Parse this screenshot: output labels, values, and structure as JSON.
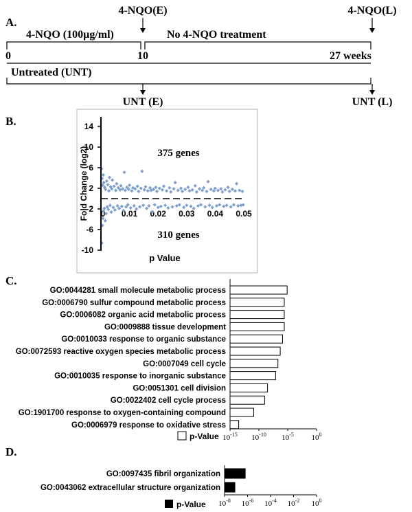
{
  "panel_a": {
    "letter": "A.",
    "top_left_label": "4-NQO(E)",
    "top_right_label": "4-NQO(L)",
    "treatment_label": "4-NQO (100µg/ml)",
    "no_treatment_label": "No 4-NQO treatment",
    "tick_0": "0",
    "tick_10": "10",
    "tick_27": "27 weeks",
    "untreated_label": "Untreated (UNT)",
    "bottom_left_label": "UNT (E)",
    "bottom_right_label": "UNT (L)"
  },
  "panel_b": {
    "letter": "B.",
    "genes_up": "375 genes",
    "genes_down": "310 genes"
  },
  "panel_c": {
    "letter": "C."
  },
  "panel_d": {
    "letter": "D."
  },
  "chart_data": [
    {
      "type": "scatter",
      "xlabel": "p Value",
      "ylabel": "Fold Change (log2)",
      "xlim": [
        0,
        0.05
      ],
      "ylim": [
        -10,
        14
      ],
      "xticks": [
        "0",
        "0.01",
        "0.02",
        "0.03",
        "0.04",
        "0.05"
      ],
      "yticks": [
        "-10",
        "-6",
        "-2",
        "2",
        "6",
        "10",
        "14"
      ],
      "series_color": "#7f9fcf",
      "points": [
        [
          0.0002,
          5.8
        ],
        [
          0.0003,
          -8.6
        ],
        [
          0.0004,
          3.9
        ],
        [
          0.0005,
          -5.2
        ],
        [
          0.0006,
          2.6
        ],
        [
          0.0007,
          -3.8
        ],
        [
          0.0008,
          4.6
        ],
        [
          0.0009,
          -2.4
        ],
        [
          0.001,
          3.1
        ],
        [
          0.0012,
          -1.9
        ],
        [
          0.0013,
          2.2
        ],
        [
          0.0015,
          -4.3
        ],
        [
          0.0016,
          1.8
        ],
        [
          0.0018,
          -2.9
        ],
        [
          0.002,
          3.4
        ],
        [
          0.0022,
          -1.6
        ],
        [
          0.0024,
          2.7
        ],
        [
          0.0026,
          -2.1
        ],
        [
          0.0028,
          1.5
        ],
        [
          0.003,
          4.1
        ],
        [
          0.0032,
          -1.3
        ],
        [
          0.0034,
          2.3
        ],
        [
          0.0036,
          -2.6
        ],
        [
          0.0038,
          1.9
        ],
        [
          0.004,
          3.6
        ],
        [
          0.0043,
          -1.7
        ],
        [
          0.0046,
          2.4
        ],
        [
          0.0049,
          -2.2
        ],
        [
          0.0052,
          1.6
        ],
        [
          0.0055,
          2.9
        ],
        [
          0.0058,
          -1.4
        ],
        [
          0.0061,
          2.1
        ],
        [
          0.0064,
          -1.9
        ],
        [
          0.0067,
          1.7
        ],
        [
          0.007,
          2.5
        ],
        [
          0.0073,
          -1.5
        ],
        [
          0.0076,
          1.9
        ],
        [
          0.0079,
          -2.3
        ],
        [
          0.0082,
          5.1
        ],
        [
          0.0085,
          1.6
        ],
        [
          0.0088,
          -1.6
        ],
        [
          0.0091,
          2.2
        ],
        [
          0.0094,
          -1.2
        ],
        [
          0.0097,
          1.8
        ],
        [
          0.01,
          2.6
        ],
        [
          0.0104,
          -1.8
        ],
        [
          0.0108,
          1.5
        ],
        [
          0.0112,
          2.1
        ],
        [
          0.0116,
          -1.4
        ],
        [
          0.012,
          1.9
        ],
        [
          0.0124,
          -2.0
        ],
        [
          0.0128,
          2.4
        ],
        [
          0.0132,
          1.4
        ],
        [
          0.0136,
          -1.6
        ],
        [
          0.014,
          2.0
        ],
        [
          0.0144,
          5.3
        ],
        [
          0.0148,
          -1.3
        ],
        [
          0.0152,
          1.7
        ],
        [
          0.0156,
          2.3
        ],
        [
          0.016,
          -1.9
        ],
        [
          0.0164,
          1.5
        ],
        [
          0.0168,
          -1.4
        ],
        [
          0.0172,
          2.1
        ],
        [
          0.0176,
          1.6
        ],
        [
          0.018,
          -2.6
        ],
        [
          0.0184,
          1.8
        ],
        [
          0.0188,
          -1.2
        ],
        [
          0.0192,
          2.2
        ],
        [
          0.0196,
          1.4
        ],
        [
          0.02,
          -1.7
        ],
        [
          0.0205,
          2.0
        ],
        [
          0.021,
          -1.5
        ],
        [
          0.0215,
          1.7
        ],
        [
          0.022,
          2.4
        ],
        [
          0.0225,
          -1.3
        ],
        [
          0.023,
          1.5
        ],
        [
          0.0235,
          -1.8
        ],
        [
          0.024,
          2.1
        ],
        [
          0.0245,
          1.3
        ],
        [
          0.025,
          -1.6
        ],
        [
          0.0255,
          1.9
        ],
        [
          0.026,
          3.1
        ],
        [
          0.0265,
          -1.4
        ],
        [
          0.027,
          1.6
        ],
        [
          0.0275,
          -1.2
        ],
        [
          0.028,
          2.0
        ],
        [
          0.0285,
          1.4
        ],
        [
          0.029,
          -1.7
        ],
        [
          0.0295,
          1.8
        ],
        [
          0.03,
          -1.3
        ],
        [
          0.0305,
          2.2
        ],
        [
          0.031,
          1.5
        ],
        [
          0.0315,
          -1.5
        ],
        [
          0.032,
          1.7
        ],
        [
          0.0325,
          -1.9
        ],
        [
          0.033,
          2.5
        ],
        [
          0.0335,
          1.3
        ],
        [
          0.034,
          -1.4
        ],
        [
          0.0345,
          1.9
        ],
        [
          0.035,
          -1.2
        ],
        [
          0.0355,
          1.6
        ],
        [
          0.036,
          2.1
        ],
        [
          0.0365,
          -1.6
        ],
        [
          0.037,
          1.4
        ],
        [
          0.0375,
          3.3
        ],
        [
          0.038,
          -1.3
        ],
        [
          0.0385,
          1.8
        ],
        [
          0.039,
          -1.7
        ],
        [
          0.0395,
          1.5
        ],
        [
          0.04,
          2.0
        ],
        [
          0.0405,
          -1.4
        ],
        [
          0.041,
          1.6
        ],
        [
          0.0415,
          -1.2
        ],
        [
          0.042,
          1.9
        ],
        [
          0.0425,
          1.3
        ],
        [
          0.043,
          -1.5
        ],
        [
          0.0435,
          1.7
        ],
        [
          0.044,
          -1.3
        ],
        [
          0.0445,
          2.2
        ],
        [
          0.045,
          1.4
        ],
        [
          0.0455,
          -1.6
        ],
        [
          0.046,
          1.8
        ],
        [
          0.0465,
          -1.2
        ],
        [
          0.047,
          1.5
        ],
        [
          0.0475,
          2.9
        ],
        [
          0.048,
          -1.4
        ],
        [
          0.0485,
          1.6
        ],
        [
          0.049,
          -1.3
        ],
        [
          0.0495,
          1.4
        ],
        [
          0.0498,
          -1.2
        ]
      ]
    },
    {
      "type": "bar",
      "orientation": "horizontal",
      "scale": "log",
      "xlabel": "p-Value",
      "xlim_exponent": [
        -15,
        0
      ],
      "ticks": [
        {
          "base": "10",
          "exp": "-15"
        },
        {
          "base": "10",
          "exp": "-10"
        },
        {
          "base": "10",
          "exp": "-5"
        },
        {
          "base": "10",
          "exp": "0"
        }
      ],
      "bar_color": "#ffffff",
      "categories": [
        "GO:0044281 small molecule metabolic process",
        "GO:0006790 sulfur compound metabolic process",
        "GO:0006082 organic acid metabolic process",
        "GO:0009888 tissue development",
        "GO:0010033 response to organic substance",
        "GO:0072593 reactive oxygen species metabolic process",
        "GO:0007049 cell cycle",
        "GO:0010035 response to inorganic substance",
        "GO:0051301 cell division",
        "GO:0022402 cell cycle process",
        "GO:1901700 response to oxygen-containing compound",
        "GO:0006979 response to oxidative stress"
      ],
      "values_exponent": [
        -5.1,
        -5.6,
        -5.6,
        -5.6,
        -5.9,
        -6.3,
        -6.7,
        -7.1,
        -8.5,
        -9.0,
        -10.9,
        -13.5
      ]
    },
    {
      "type": "bar",
      "orientation": "horizontal",
      "scale": "log",
      "xlabel": "p-Value",
      "xlim_exponent": [
        -8,
        0
      ],
      "ticks": [
        {
          "base": "10",
          "exp": "-8"
        },
        {
          "base": "10",
          "exp": "-6"
        },
        {
          "base": "10",
          "exp": "-4"
        },
        {
          "base": "10",
          "exp": "-2"
        },
        {
          "base": "10",
          "exp": "0"
        }
      ],
      "bar_color": "#000000",
      "categories": [
        "GO:0097435 fibril organization",
        "GO:0043062 extracellular structure organization"
      ],
      "values_exponent": [
        -6.2,
        -7.1
      ]
    }
  ]
}
